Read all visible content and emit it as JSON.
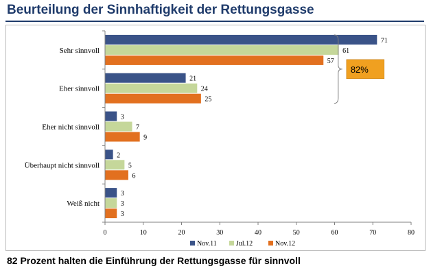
{
  "header": {
    "title": "Beurteilung der Sinnhaftigkeit der Rettungsgasse"
  },
  "footer": {
    "caption": "82 Prozent halten die Einführung der Rettungsgasse für sinnvoll"
  },
  "annotation": {
    "label": "82%",
    "color": "#f0a020"
  },
  "chart_data": {
    "type": "bar",
    "orientation": "horizontal",
    "categories": [
      "Sehr sinnvoll",
      "Eher sinnvoll",
      "Eher nicht sinnvoll",
      "Überhaupt nicht sinnvoll",
      "Weiß nicht"
    ],
    "series": [
      {
        "name": "Nov.11",
        "color": "#3a5388",
        "values": [
          71,
          21,
          3,
          2,
          3
        ]
      },
      {
        "name": "Jul.12",
        "color": "#c5d79a",
        "values": [
          61,
          24,
          7,
          5,
          3
        ]
      },
      {
        "name": "Nov.12",
        "color": "#e2701f",
        "values": [
          57,
          25,
          9,
          6,
          3
        ]
      }
    ],
    "xlim": [
      0,
      80
    ],
    "xticks": [
      0,
      10,
      20,
      30,
      40,
      50,
      60,
      70,
      80
    ],
    "legend_position": "bottom",
    "grid": false
  }
}
